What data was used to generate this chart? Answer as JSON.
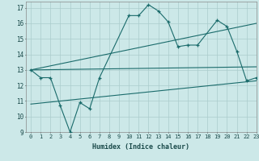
{
  "xlabel": "Humidex (Indice chaleur)",
  "bg_color": "#cce8e8",
  "grid_color": "#aacccc",
  "line_color": "#1a6b6b",
  "xlim": [
    -0.5,
    23
  ],
  "ylim": [
    9,
    17.4
  ],
  "xtick_labels": [
    "0",
    "1",
    "2",
    "3",
    "4",
    "5",
    "6",
    "7",
    "8",
    "9",
    "10",
    "11",
    "12",
    "13",
    "14",
    "15",
    "16",
    "17",
    "18",
    "19",
    "20",
    "21",
    "22",
    "23"
  ],
  "xtick_vals": [
    0,
    1,
    2,
    3,
    4,
    5,
    6,
    7,
    8,
    9,
    10,
    11,
    12,
    13,
    14,
    15,
    16,
    17,
    18,
    19,
    20,
    21,
    22,
    23
  ],
  "ytick_vals": [
    9,
    10,
    11,
    12,
    13,
    14,
    15,
    16,
    17
  ],
  "series1_x": [
    0,
    1,
    2,
    3,
    4,
    5,
    6,
    7,
    10,
    11,
    12,
    13,
    14,
    15,
    16,
    17,
    19,
    20,
    21,
    22,
    23
  ],
  "series1_y": [
    13.0,
    12.5,
    12.5,
    10.7,
    9.0,
    10.9,
    10.5,
    12.5,
    16.5,
    16.5,
    17.2,
    16.8,
    16.1,
    14.5,
    14.6,
    14.6,
    16.2,
    15.8,
    14.2,
    12.3,
    12.5
  ],
  "trend1_x": [
    0,
    23
  ],
  "trend1_y": [
    13.0,
    13.2
  ],
  "trend2_x": [
    0,
    23
  ],
  "trend2_y": [
    13.0,
    16.0
  ],
  "trend3_x": [
    0,
    23
  ],
  "trend3_y": [
    10.8,
    12.3
  ]
}
